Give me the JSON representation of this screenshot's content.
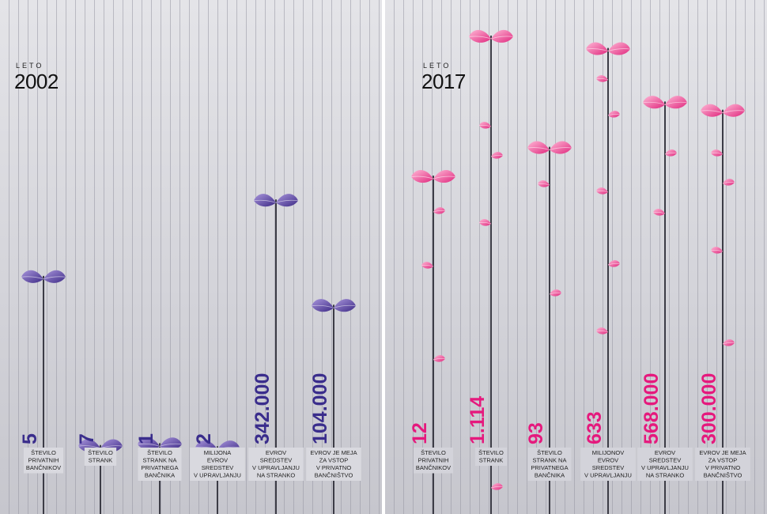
{
  "panels": [
    {
      "year_label": "LETO",
      "year": "2002"
    },
    {
      "year_label": "LETO",
      "year": "2017"
    }
  ],
  "colors": {
    "stem": "#3c3c46",
    "purple_light": "#a996dc",
    "purple_dark": "#3d2a86",
    "purple_text": "#3a2d8c",
    "pink_light": "#ffb9d7",
    "pink_dark": "#e0287e",
    "pink_text": "#e5197d"
  },
  "chart_data": [
    {
      "type": "bar",
      "title": "2002",
      "categories": [
        "ŠTEVILO PRIVATNIH BANČNIKOV",
        "ŠTEVILO STRANK",
        "ŠTEVILO STRANK NA PRIVATNEGA BANČNIKA",
        "MILIJONA EVROV SREDSTEV V UPRAVLJANJU",
        "EVROV SREDSTEV V UPRAVLJANJU NA STRANKO",
        "EVROV JE MEJA ZA VSTOP V PRIVATNO BANČNIŠTVO"
      ],
      "value_labels": [
        "5",
        "7",
        "1",
        "2",
        "342.000",
        "104.000"
      ],
      "values": [
        5,
        7,
        1,
        2,
        342000,
        104000
      ],
      "description_lines": [
        [
          "ŠTEVILO",
          "PRIVATNIH",
          "BANČNIKOV"
        ],
        [
          "ŠTEVILO",
          "STRANK"
        ],
        [
          "ŠTEVILO",
          "STRANK NA",
          "PRIVATNEGA",
          "BANČNIKA"
        ],
        [
          "MILIJONA",
          "EVROV",
          "SREDSTEV",
          "V UPRAVLJANJU"
        ],
        [
          "EVROV",
          "SREDSTEV",
          "V UPRAVLJANJU",
          "NA STRANKO"
        ],
        [
          "EVROV JE MEJA",
          "ZA VSTOP",
          "V PRIVATNO",
          "BANČNIŠTVO"
        ]
      ],
      "plant_heights_relative_to_2017": [
        0.4167,
        0.0063,
        0.0108,
        0.0032,
        0.6021,
        0.3467
      ]
    },
    {
      "type": "bar",
      "title": "2017",
      "categories": [
        "ŠTEVILO PRIVATNIH BANČNIKOV",
        "ŠTEVILO STRANK",
        "ŠTEVILO STRANK NA PRIVATNEGA BANČNIKA",
        "MILIJONOV EVROV SREDSTEV V UPRAVLJANJU",
        "EVROV SREDSTEV V UPRAVLJANJU NA STRANKO",
        "EVROV JE MEJA ZA VSTOP V PRIVATNO BANČNIŠTVO"
      ],
      "value_labels": [
        "12",
        "1.114",
        "93",
        "633",
        "568.000",
        "300.000"
      ],
      "values": [
        12,
        1114,
        93,
        633,
        568000,
        300000
      ],
      "description_lines": [
        [
          "ŠTEVILO",
          "PRIVATNIH",
          "BANČNIKOV"
        ],
        [
          "ŠTEVILO",
          "STRANK"
        ],
        [
          "ŠTEVILO",
          "STRANK NA",
          "PRIVATNEGA",
          "BANČNIKA"
        ],
        [
          "MILIJONOV",
          "EVROV",
          "SREDSTEV",
          "V UPRAVLJANJU"
        ],
        [
          "EVROV",
          "SREDSTEV",
          "V UPRAVLJANJU",
          "NA STRANKO"
        ],
        [
          "EVROV JE MEJA",
          "ZA VSTOP",
          "V PRIVATNO",
          "BANČNIŠTVO"
        ]
      ]
    }
  ]
}
